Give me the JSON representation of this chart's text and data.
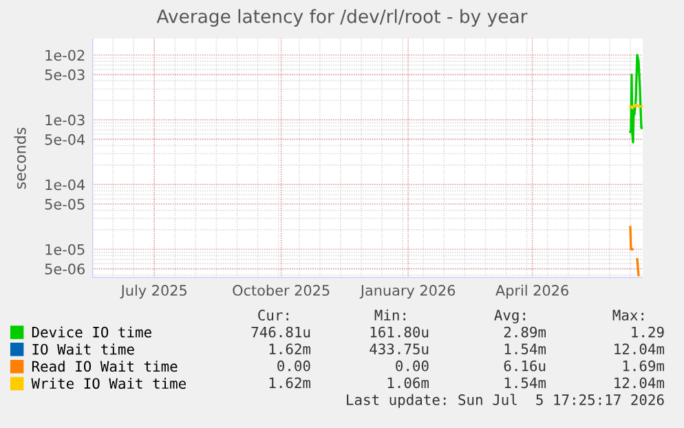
{
  "chart_data": {
    "type": "line",
    "title": "Average latency for /dev/rl/root - by year",
    "ylabel": "seconds",
    "log": "y",
    "grid": true,
    "legend": "bottom",
    "marker": "none",
    "line_style": "solid",
    "xlim": [
      "2025-06-01",
      "2026-07-05"
    ],
    "xticks": [
      {
        "value": "2025-07-16",
        "label": "July 2025"
      },
      {
        "value": "2025-10-16",
        "label": "October 2025"
      },
      {
        "value": "2026-01-16",
        "label": "January 2026"
      },
      {
        "value": "2026-04-16",
        "label": "April 2026"
      }
    ],
    "ylim": [
      3.6e-06,
      0.018
    ],
    "yticks": [
      {
        "value": 0.01,
        "label": "1e-02"
      },
      {
        "value": 0.005,
        "label": "5e-03"
      },
      {
        "value": 0.001,
        "label": "1e-03"
      },
      {
        "value": 0.0005,
        "label": "5e-04"
      },
      {
        "value": 0.0001,
        "label": "1e-04"
      },
      {
        "value": 5e-05,
        "label": "5e-05"
      },
      {
        "value": 1e-05,
        "label": "1e-05"
      },
      {
        "value": 5e-06,
        "label": "5e-06"
      }
    ],
    "x": [
      "2026-06-26",
      "2026-06-26T12:00",
      "2026-06-27",
      "2026-06-27T12:00",
      "2026-06-28",
      "2026-06-28T12:00",
      "2026-06-29",
      "2026-06-30",
      "2026-07-01",
      "2026-07-02",
      "2026-07-03",
      "2026-07-04",
      "2026-07-05"
    ],
    "series": [
      {
        "name": "Device IO time",
        "color": "#00cc00",
        "values": [
          0.00065,
          0.0007,
          0.005,
          0.0006,
          0.00045,
          0.0015,
          0.0012,
          0.002,
          0.01,
          0.008,
          0.003,
          0.00075,
          0.00075
        ]
      },
      {
        "name": "IO Wait time",
        "color": "#0066b3",
        "values": [
          null,
          null,
          null,
          null,
          null,
          null,
          null,
          null,
          null,
          null,
          null,
          null,
          null
        ]
      },
      {
        "name": "Read IO Wait time",
        "color": "#ff8000",
        "values": [
          2.2e-05,
          1e-05,
          1e-05,
          1e-05,
          null,
          null,
          null,
          null,
          7e-06,
          4e-06,
          null,
          null,
          null
        ]
      },
      {
        "name": "Write IO Wait time",
        "color": "#ffcc00",
        "values": [
          0.0016,
          0.0016,
          0.0016,
          0.0015,
          0.0016,
          0.0016,
          0.0016,
          0.0017,
          0.0017,
          0.0016,
          0.0016,
          0.00162,
          0.00162
        ]
      }
    ],
    "annotations": [
      "Cur:",
      "Min:",
      "Avg:",
      "Max:",
      "746.81u",
      "161.80u",
      "2.89m",
      "1.29",
      "1.62m",
      "433.75u",
      "1.54m",
      "12.04m",
      "0.00",
      "0.00",
      "6.16u",
      "1.69m",
      "1.62m",
      "1.06m",
      "1.54m",
      "12.04m",
      "Last update: Sun Jul  5 17:25:17 2026"
    ]
  }
}
